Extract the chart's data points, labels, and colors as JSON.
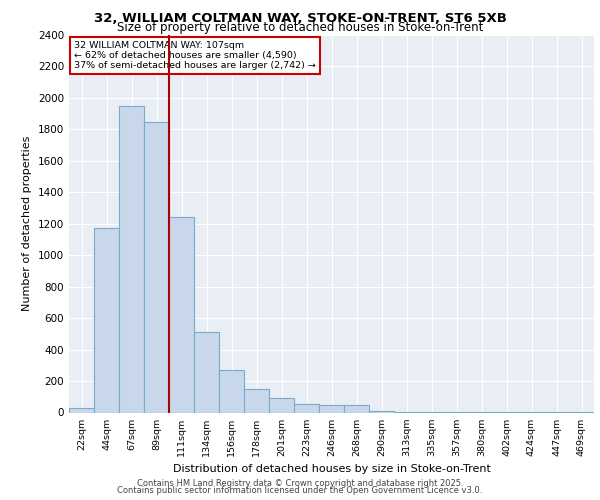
{
  "title1": "32, WILLIAM COLTMAN WAY, STOKE-ON-TRENT, ST6 5XB",
  "title2": "Size of property relative to detached houses in Stoke-on-Trent",
  "xlabel": "Distribution of detached houses by size in Stoke-on-Trent",
  "ylabel": "Number of detached properties",
  "categories": [
    "22sqm",
    "44sqm",
    "67sqm",
    "89sqm",
    "111sqm",
    "134sqm",
    "156sqm",
    "178sqm",
    "201sqm",
    "223sqm",
    "246sqm",
    "268sqm",
    "290sqm",
    "313sqm",
    "335sqm",
    "357sqm",
    "380sqm",
    "402sqm",
    "424sqm",
    "447sqm",
    "469sqm"
  ],
  "values": [
    30,
    1170,
    1950,
    1850,
    1240,
    510,
    270,
    150,
    90,
    55,
    50,
    45,
    10,
    5,
    3,
    2,
    2,
    2,
    1,
    1,
    1
  ],
  "bar_color": "#c8d8ea",
  "bar_edge_color": "#7aaacb",
  "vline_x_index": 4,
  "vline_color": "#aa0000",
  "annotation_text": "32 WILLIAM COLTMAN WAY: 107sqm\n← 62% of detached houses are smaller (4,590)\n37% of semi-detached houses are larger (2,742) →",
  "annotation_box_color": "#cc0000",
  "ylim": [
    0,
    2400
  ],
  "bg_color": "#e8eef4",
  "grid_color": "#ffffff",
  "footer1": "Contains HM Land Registry data © Crown copyright and database right 2025.",
  "footer2": "Contains public sector information licensed under the Open Government Licence v3.0."
}
